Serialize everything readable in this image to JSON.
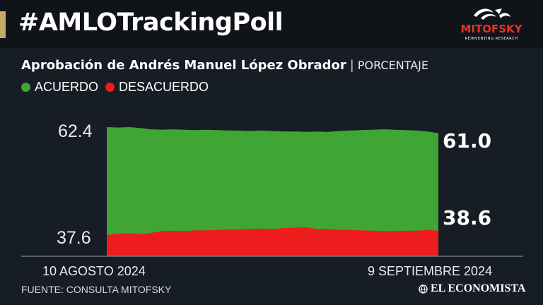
{
  "header": {
    "hashtag": "#AMLOTrackingPoll",
    "logo_text": "MITOFSKY",
    "logo_tagline": "REINVENTING RESEARCH"
  },
  "subtitle": {
    "main": "Aprobación de Andrés Manuel López Obrador",
    "separator": "|",
    "unit": "PORCENTAJE"
  },
  "colors": {
    "acuerdo": "#3fa535",
    "desacuerdo": "#ee1c1c",
    "accent": "#c8a96a",
    "background": "#171d25"
  },
  "chart_data": {
    "type": "area",
    "title": "Aprobación de Andrés Manuel López Obrador",
    "x_start_label": "10 AGOSTO 2024",
    "x_end_label": "9 SEPTIEMBRE 2024",
    "yticks": [
      "62.4",
      "37.6"
    ],
    "legend_position": "top-left",
    "series": [
      {
        "name": "ACUERDO",
        "color": "#3fa535",
        "values": [
          62.4,
          62.3,
          62.4,
          62.2,
          61.9,
          61.8,
          61.9,
          61.8,
          61.7,
          61.8,
          61.7,
          61.6,
          61.6,
          61.5,
          61.6,
          61.5,
          61.4,
          61.4,
          61.3,
          61.4,
          61.3,
          61.5,
          61.6,
          61.7,
          61.8,
          61.9,
          61.8,
          61.7,
          61.6,
          61.4,
          61.0
        ]
      },
      {
        "name": "DESACUERDO",
        "color": "#ee1c1c",
        "values": [
          37.6,
          37.9,
          38.0,
          37.8,
          38.1,
          38.5,
          38.6,
          38.5,
          38.7,
          38.7,
          38.8,
          38.9,
          38.9,
          39.0,
          39.1,
          39.0,
          39.2,
          39.3,
          39.4,
          39.0,
          39.0,
          38.8,
          38.8,
          38.7,
          38.6,
          38.5,
          38.5,
          38.6,
          38.6,
          38.8,
          38.6
        ]
      }
    ],
    "end_values": {
      "acuerdo": "61.0",
      "desacuerdo": "38.6"
    }
  },
  "footer": {
    "source": "FUENTE: CONSULTA MITOFSKY",
    "publisher": "EL ECONOMISTA"
  }
}
